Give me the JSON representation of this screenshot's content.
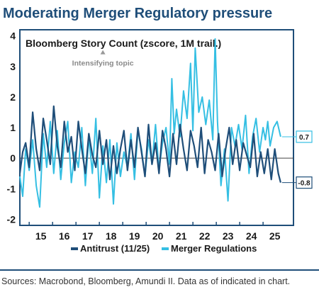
{
  "header": {
    "title": "Moderating Merger Regulatory pressure"
  },
  "footer": {
    "source": "Sources:  Macrobond, Bloomberg, Amundi II. Data as of indicated in chart."
  },
  "chart_data": {
    "type": "line",
    "title": "Bloomberg Story Count (zscore, 1M trail.)",
    "xlabel": "",
    "ylabel": "",
    "x_ticks": [
      "15",
      "16",
      "17",
      "18",
      "19",
      "20",
      "21",
      "22",
      "23",
      "24",
      "25"
    ],
    "x_range": [
      2014.6,
      2026.3
    ],
    "y_ticks": [
      -2,
      -1,
      0,
      1,
      2,
      3,
      4
    ],
    "ylim": [
      -2.2,
      4.2
    ],
    "grid": false,
    "zero_line": true,
    "legend_position": "bottom",
    "annotation": {
      "text": "Intensifying topic",
      "x": 2018.15,
      "y": 3.35,
      "marker": "triangle-up"
    },
    "end_labels": [
      {
        "series": "Merger Regulations",
        "value": 0.7,
        "label": "0.7"
      },
      {
        "series": "Antitrust (11/25)",
        "value": -0.8,
        "label": "-0.8"
      }
    ],
    "series": [
      {
        "name": "Merger Regulations",
        "color": "#35bfe3",
        "x": [
          2014.6,
          2014.72,
          2014.85,
          2015.0,
          2015.15,
          2015.3,
          2015.45,
          2015.6,
          2015.75,
          2015.9,
          2016.05,
          2016.2,
          2016.35,
          2016.5,
          2016.65,
          2016.8,
          2016.95,
          2017.1,
          2017.25,
          2017.4,
          2017.55,
          2017.7,
          2017.85,
          2018.0,
          2018.15,
          2018.3,
          2018.45,
          2018.6,
          2018.75,
          2018.9,
          2019.05,
          2019.2,
          2019.35,
          2019.5,
          2019.65,
          2019.8,
          2019.95,
          2020.1,
          2020.25,
          2020.4,
          2020.55,
          2020.7,
          2020.85,
          2021.0,
          2021.1,
          2021.2,
          2021.3,
          2021.45,
          2021.6,
          2021.75,
          2021.9,
          2022.0,
          2022.1,
          2022.25,
          2022.4,
          2022.55,
          2022.7,
          2022.85,
          2022.95,
          2023.05,
          2023.2,
          2023.35,
          2023.5,
          2023.65,
          2023.8,
          2023.95,
          2024.1,
          2024.25,
          2024.4,
          2024.55,
          2024.7,
          2024.85,
          2025.0,
          2025.1,
          2025.2,
          2025.3,
          2025.45,
          2025.6,
          2025.75
        ],
        "values": [
          -0.6,
          -1.25,
          0.3,
          -0.4,
          0.6,
          -0.9,
          -1.6,
          0.8,
          -0.3,
          1.2,
          -0.5,
          0.9,
          -0.7,
          0.5,
          1.2,
          -0.8,
          0.2,
          -0.3,
          1.0,
          -0.9,
          0.7,
          -0.5,
          1.3,
          -1.3,
          0.4,
          -0.8,
          0.6,
          -1.5,
          0.5,
          -0.6,
          0.2,
          -0.3,
          0.8,
          -0.7,
          0.9,
          0.3,
          -0.6,
          0.6,
          -0.2,
          1.1,
          -0.4,
          0.5,
          1.0,
          -0.2,
          2.6,
          0.8,
          1.6,
          0.7,
          2.2,
          1.3,
          3.1,
          0.9,
          3.6,
          1.5,
          2.0,
          1.1,
          1.9,
          0.6,
          3.9,
          1.2,
          -0.9,
          0.3,
          -1.4,
          1.0,
          0.4,
          1.1,
          0.3,
          1.4,
          -0.5,
          0.7,
          1.3,
          0.2,
          1.0,
          0.6,
          1.2,
          0.4,
          1.0,
          1.2,
          0.7
        ]
      },
      {
        "name": "Antitrust (11/25)",
        "color": "#1f4e79",
        "x": [
          2014.6,
          2014.72,
          2014.85,
          2015.0,
          2015.15,
          2015.3,
          2015.45,
          2015.6,
          2015.75,
          2015.9,
          2016.05,
          2016.2,
          2016.35,
          2016.5,
          2016.65,
          2016.8,
          2016.95,
          2017.1,
          2017.25,
          2017.4,
          2017.55,
          2017.7,
          2017.85,
          2018.0,
          2018.15,
          2018.3,
          2018.45,
          2018.6,
          2018.75,
          2018.9,
          2019.05,
          2019.2,
          2019.35,
          2019.5,
          2019.65,
          2019.8,
          2019.95,
          2020.1,
          2020.25,
          2020.4,
          2020.55,
          2020.7,
          2020.85,
          2021.0,
          2021.15,
          2021.3,
          2021.45,
          2021.6,
          2021.75,
          2021.9,
          2022.05,
          2022.2,
          2022.35,
          2022.5,
          2022.65,
          2022.8,
          2022.95,
          2023.1,
          2023.25,
          2023.4,
          2023.55,
          2023.7,
          2023.85,
          2024.0,
          2024.15,
          2024.3,
          2024.45,
          2024.6,
          2024.75,
          2024.9,
          2025.05,
          2025.2,
          2025.35,
          2025.5,
          2025.65,
          2025.75
        ],
        "values": [
          -0.5,
          0.2,
          0.5,
          -0.3,
          1.5,
          0.3,
          -0.4,
          1.3,
          0.6,
          -0.2,
          1.7,
          0.4,
          -0.3,
          1.2,
          0.2,
          0.7,
          -0.4,
          1.2,
          0.3,
          -0.5,
          0.8,
          0.1,
          -0.3,
          0.9,
          -0.2,
          0.6,
          -0.7,
          0.4,
          -0.5,
          0.3,
          0.9,
          -0.4,
          0.6,
          -0.3,
          1.0,
          0.2,
          -0.6,
          1.1,
          -0.2,
          0.5,
          -0.5,
          0.9,
          0.3,
          -0.6,
          0.8,
          -0.2,
          1.1,
          0.3,
          -0.4,
          0.9,
          0.4,
          -0.3,
          1.0,
          -0.5,
          0.6,
          0.2,
          -0.4,
          0.8,
          -0.6,
          0.3,
          1.0,
          -0.2,
          0.6,
          -0.4,
          0.5,
          0.1,
          -0.3,
          0.8,
          -0.6,
          0.2,
          -0.5,
          0.3,
          -0.7,
          0.3,
          -0.5,
          -0.8
        ]
      }
    ]
  }
}
